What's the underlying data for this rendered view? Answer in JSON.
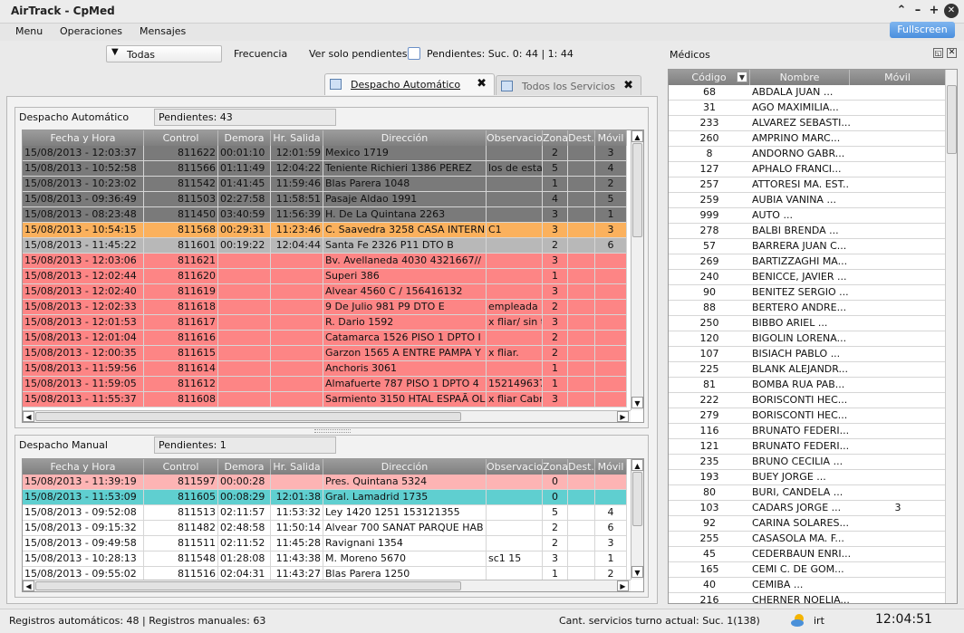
{
  "window": {
    "title": "AirTrack - CpMed",
    "fullscreen_label": "Fullscreen",
    "min": "–",
    "restore": "+",
    "close": "✕",
    "collapse": "⌃"
  },
  "menu": [
    "Menu",
    "Operaciones",
    "Mensajes"
  ],
  "toolbar": {
    "combo_value": "Todas",
    "frecuencia": "Frecuencia",
    "ver_solo": "Ver solo pendientes",
    "pendientes": "Pendientes: Suc. 0: 44  |  1: 44"
  },
  "tabs": [
    {
      "label": "Despacho Automático",
      "close": "✖"
    },
    {
      "label": "Todos los Servicios",
      "close": "✖"
    }
  ],
  "auto": {
    "title": "Despacho Automático",
    "pendientes": "Pendientes: 43"
  },
  "manual": {
    "title": "Despacho Manual",
    "pendientes": "Pendientes: 1"
  },
  "columns": [
    "Fecha y Hora",
    "Control",
    "Demora",
    "Hr. Salida",
    "Dirección",
    "Observacion",
    "Zona",
    "Dest.",
    "Móvil"
  ],
  "auto_rows": [
    [
      "15/08/2013 - 12:03:37",
      "811622",
      "00:01:10",
      "12:01:59",
      "Mexico 1719",
      "",
      "2",
      "",
      "3",
      "#7a7a7a"
    ],
    [
      "15/08/2013 - 10:52:58",
      "811566",
      "01:11:49",
      "12:04:22",
      "Teniente Richieri 1386     PEREZ",
      "los de esta",
      "5",
      "",
      "4",
      "#7a7a7a"
    ],
    [
      "15/08/2013 - 10:23:02",
      "811542",
      "01:41:45",
      "11:59:46",
      "Blas Parera 1048",
      "",
      "1",
      "",
      "2",
      "#7a7a7a"
    ],
    [
      "15/08/2013 - 09:36:49",
      "811503",
      "02:27:58",
      "11:58:51",
      "Pasaje Aldao 1991",
      "",
      "4",
      "",
      "5",
      "#7a7a7a"
    ],
    [
      "15/08/2013 - 08:23:48",
      "811450",
      "03:40:59",
      "11:56:39",
      "H. De La Quintana 2263",
      "",
      "3",
      "",
      "1",
      "#7a7a7a"
    ],
    [
      "15/08/2013 - 10:54:15",
      "811568",
      "00:29:31",
      "11:23:46",
      "C. Saavedra 3258     CASA INTERN",
      "C1",
      "3",
      "",
      "3",
      "#fbb15d"
    ],
    [
      "15/08/2013 - 11:45:22",
      "811601",
      "00:19:22",
      "12:04:44",
      "Santa Fe 2326     P11 DTO B",
      "",
      "2",
      "",
      "6",
      "#b8b8b8"
    ],
    [
      "15/08/2013 - 12:03:06",
      "811621",
      "",
      "",
      "Bv. Avellaneda 4030     4321667//",
      "",
      "3",
      "",
      "",
      "#fd8585"
    ],
    [
      "15/08/2013 - 12:02:44",
      "811620",
      "",
      "",
      "Superi 386",
      "",
      "1",
      "",
      "",
      "#fd8585"
    ],
    [
      "15/08/2013 - 12:02:40",
      "811619",
      "",
      "",
      "Alvear 4560     C  /  156416132",
      "",
      "3",
      "",
      "",
      "#fd8585"
    ],
    [
      "15/08/2013 - 12:02:33",
      "811618",
      "",
      "",
      "9 De Julio 981     P9 DTO E",
      "empleada",
      "2",
      "",
      "",
      "#fd8585"
    ],
    [
      "15/08/2013 - 12:01:53",
      "811617",
      "",
      "",
      "R. Dario 1592",
      "x fliar/ sin ti",
      "3",
      "",
      "",
      "#fd8585"
    ],
    [
      "15/08/2013 - 12:01:04",
      "811616",
      "",
      "",
      "Catamarca 1526     PISO 1 DPTO I",
      "",
      "2",
      "",
      "",
      "#fd8585"
    ],
    [
      "15/08/2013 - 12:00:35",
      "811615",
      "",
      "",
      "Garzon 1565 A     ENTRE PAMPA Y",
      "x fliar.",
      "2",
      "",
      "",
      "#fd8585"
    ],
    [
      "15/08/2013 - 11:59:56",
      "811614",
      "",
      "",
      "Anchoris 3061",
      "",
      "1",
      "",
      "",
      "#fd8585"
    ],
    [
      "15/08/2013 - 11:59:05",
      "811612",
      "",
      "",
      "Almafuerte 787     PISO 1 DPTO 4",
      "152149637",
      "1",
      "",
      "",
      "#fd8585"
    ],
    [
      "15/08/2013 - 11:55:37",
      "811608",
      "",
      "",
      "Sarmiento 3150     HTAL ESPAÃ OL",
      "x fliar Cabr",
      "3",
      "",
      "",
      "#fd8585"
    ]
  ],
  "manual_rows": [
    [
      "15/08/2013 - 11:39:19",
      "811597",
      "00:00:28",
      "",
      "Pres. Quintana 5324",
      "",
      "0",
      "",
      "",
      "#fdb4b4"
    ],
    [
      "15/08/2013 - 11:53:09",
      "811605",
      "00:08:29",
      "12:01:38",
      "Gral. Lamadrid 1735",
      "",
      "0",
      "",
      "",
      "#5fcfd0"
    ],
    [
      "15/08/2013 - 09:52:08",
      "811513",
      "02:11:57",
      "11:53:32",
      "Ley 1420 1251     153121355",
      "",
      "5",
      "",
      "4",
      "#ffffff"
    ],
    [
      "15/08/2013 - 09:15:32",
      "811482",
      "02:48:58",
      "11:50:14",
      "Alvear 700     SANAT PARQUE HAB",
      "",
      "2",
      "",
      "6",
      "#ffffff"
    ],
    [
      "15/08/2013 - 09:49:58",
      "811511",
      "02:11:52",
      "11:45:28",
      "Ravignani 1354",
      "",
      "2",
      "",
      "3",
      "#ffffff"
    ],
    [
      "15/08/2013 - 10:28:13",
      "811548",
      "01:28:08",
      "11:43:38",
      "M. Moreno 5670",
      "sc1          15",
      "3",
      "",
      "1",
      "#ffffff"
    ],
    [
      "15/08/2013 - 09:55:02",
      "811516",
      "02:04:31",
      "11:43:27",
      "Blas Parera 1250",
      "",
      "1",
      "",
      "2",
      "#ffffff"
    ]
  ],
  "medicos": {
    "title": "Médicos",
    "columns": [
      "Código",
      "Nombre",
      "Móvil"
    ],
    "rows": [
      [
        "68",
        "ABDALA JUAN          ...",
        ""
      ],
      [
        "31",
        "AGO MAXIMILIA...",
        ""
      ],
      [
        "233",
        "ALVAREZ SEBASTI...",
        ""
      ],
      [
        "260",
        "AMPRINO MARC...",
        ""
      ],
      [
        "8",
        "ANDORNO GABR...",
        ""
      ],
      [
        "127",
        "APHALO FRANCI...",
        ""
      ],
      [
        "257",
        "ATTORESI MA. EST...",
        ""
      ],
      [
        "259",
        "AUBIA VANINA          ...",
        ""
      ],
      [
        "999",
        "AUTO          ...",
        ""
      ],
      [
        "278",
        "BALBI BRENDA          ...",
        ""
      ],
      [
        "57",
        "BARRERA JUAN C...",
        ""
      ],
      [
        "269",
        "BARTIZZAGHI MA...",
        ""
      ],
      [
        "240",
        "BENICCE, JAVIER ...",
        ""
      ],
      [
        "90",
        "BENITEZ SERGIO          ...",
        ""
      ],
      [
        "88",
        "BERTERO ANDRE...",
        ""
      ],
      [
        "250",
        "BIBBO ARIEL          ...",
        ""
      ],
      [
        "120",
        "BIGOLIN LORENA...",
        ""
      ],
      [
        "107",
        "BISIACH PABLO          ...",
        ""
      ],
      [
        "225",
        "BLANK ALEJANDR...",
        ""
      ],
      [
        "81",
        "BOMBA RUA PAB...",
        ""
      ],
      [
        "222",
        "BORISCONTI HEC...",
        ""
      ],
      [
        "279",
        "BORISCONTI HEC...",
        ""
      ],
      [
        "116",
        "BRUNATO FEDERI...",
        ""
      ],
      [
        "121",
        "BRUNATO FEDERI...",
        ""
      ],
      [
        "235",
        "BRUNO CECILIA          ...",
        ""
      ],
      [
        "193",
        "BUEY JORGE          ...",
        ""
      ],
      [
        "80",
        "BURI, CANDELA          ...",
        ""
      ],
      [
        "103",
        "CADARS JORGE          ...",
        "3"
      ],
      [
        "92",
        "CARINA SOLARES...",
        ""
      ],
      [
        "255",
        "CASASOLA MA. F...",
        ""
      ],
      [
        "45",
        "CEDERBAUN ENRI...",
        ""
      ],
      [
        "165",
        "CEMI C. DE GOM...",
        ""
      ],
      [
        "40",
        "CEMIBA          ...",
        ""
      ],
      [
        "216",
        "CHERNER NOELIA...",
        ""
      ]
    ]
  },
  "status": {
    "left": "Registros automáticos: 48  |  Registros manuales: 63",
    "center": "Cant. servicios turno actual: Suc. 1(138)",
    "user": "irt",
    "clock": "12:04:51"
  }
}
